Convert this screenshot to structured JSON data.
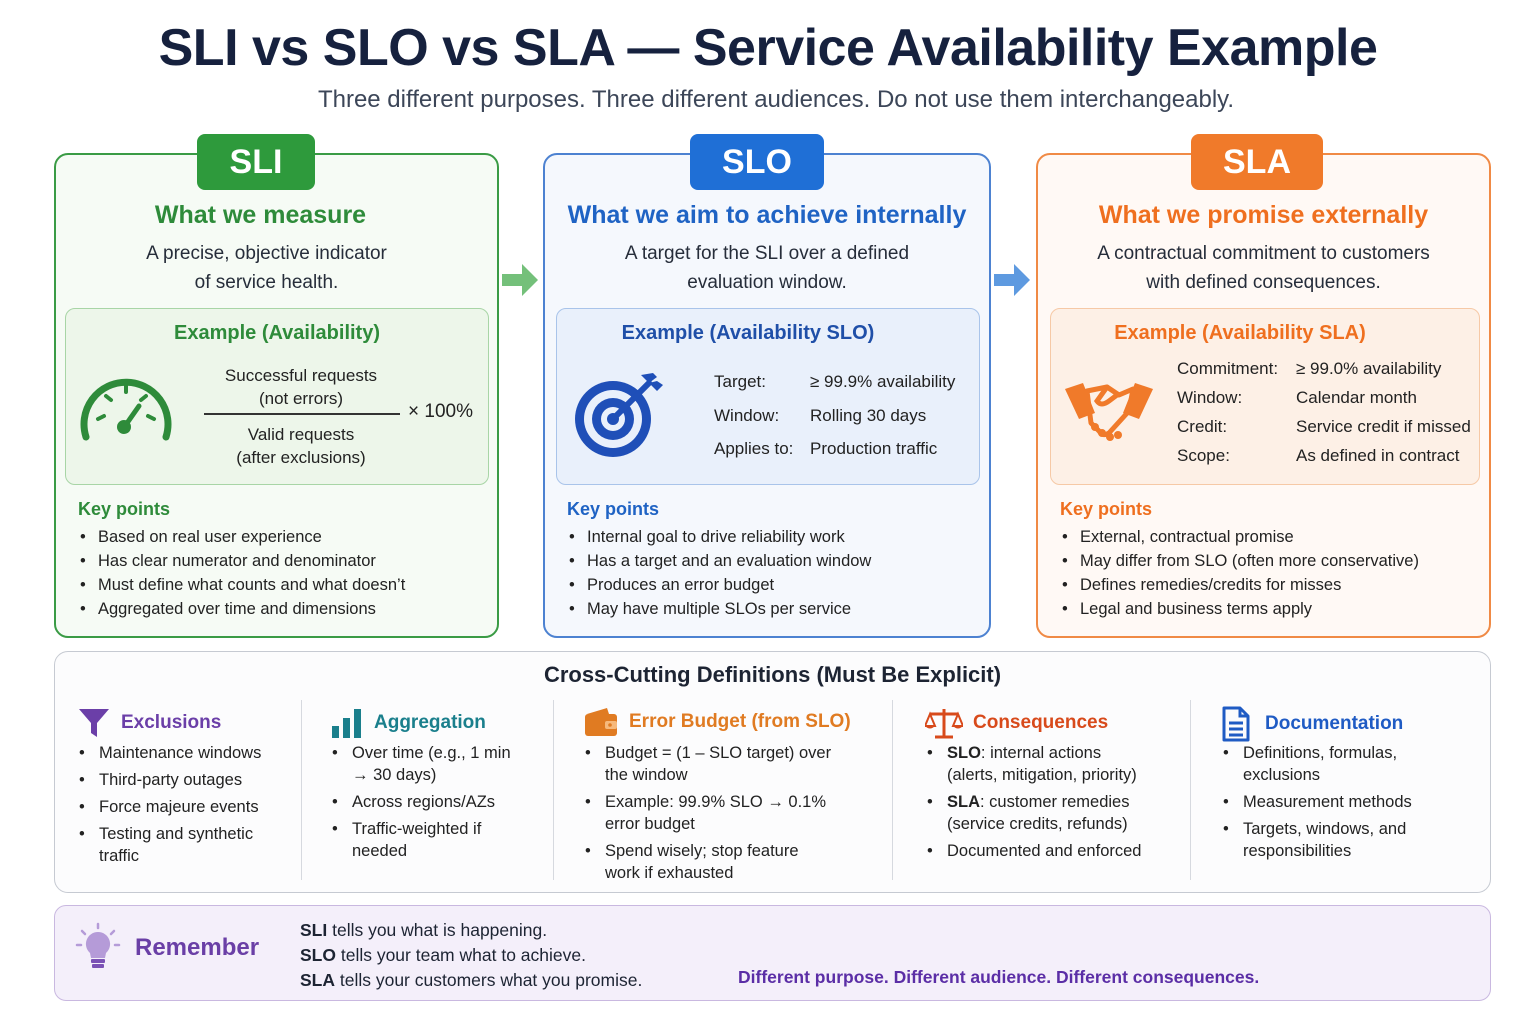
{
  "title": "SLI vs SLO vs SLA — Service Availability Example",
  "subtitle": "Three different purposes. Three different audiences. Do not use them interchangeably.",
  "colors": {
    "sli": "#2e9a3c",
    "slo": "#1f6fd6",
    "sla": "#f07a2a",
    "remember": "#6a3fa6"
  },
  "cards": {
    "sli": {
      "badge": "SLI",
      "heading": "What we measure",
      "desc1": "A precise, objective indicator",
      "desc2": "of service health.",
      "example_title": "Example (Availability)",
      "icon": "gauge-icon",
      "numerator1": "Successful requests",
      "numerator2": "(not errors)",
      "denominator1": "Valid requests",
      "denominator2": "(after exclusions)",
      "multiplier": "× 100%",
      "key_title": "Key points",
      "points": [
        "Based on real user experience",
        "Has clear numerator and denominator",
        "Must define what counts and what doesn’t",
        "Aggregated over time and dimensions"
      ]
    },
    "slo": {
      "badge": "SLO",
      "heading": "What we aim to achieve internally",
      "desc1": "A target for the SLI over a defined",
      "desc2": "evaluation window.",
      "example_title": "Example (Availability SLO)",
      "icon": "target-icon",
      "rows": [
        {
          "k": "Target:",
          "v": "≥ 99.9% availability"
        },
        {
          "k": "Window:",
          "v": "Rolling 30 days"
        },
        {
          "k": "Applies to:",
          "v": "Production traffic"
        }
      ],
      "key_title": "Key points",
      "points": [
        "Internal goal to drive reliability work",
        "Has a target and an evaluation window",
        "Produces an error budget",
        "May have multiple SLOs per service"
      ]
    },
    "sla": {
      "badge": "SLA",
      "heading": "What we promise externally",
      "desc1": "A contractual commitment to customers",
      "desc2": "with defined consequences.",
      "example_title": "Example (Availability SLA)",
      "icon": "handshake-icon",
      "rows": [
        {
          "k": "Commitment:",
          "v": "≥ 99.0% availability"
        },
        {
          "k": "Window:",
          "v": "Calendar month"
        },
        {
          "k": "Credit:",
          "v": "Service credit if missed"
        },
        {
          "k": "Scope:",
          "v": "As defined in contract"
        }
      ],
      "key_title": "Key points",
      "points": [
        "External, contractual promise",
        "May differ from SLO (often more conservative)",
        "Defines remedies/credits for misses",
        "Legal and business terms apply"
      ]
    }
  },
  "cross": {
    "title": "Cross-Cutting Definitions (Must Be Explicit)",
    "columns": [
      {
        "label": "Exclusions",
        "icon": "funnel-icon",
        "color": "#6b3fa8",
        "items": [
          "Maintenance windows",
          "Third-party outages",
          "Force majeure events",
          "Testing and synthetic traffic"
        ]
      },
      {
        "label": "Aggregation",
        "icon": "bar-chart-icon",
        "color": "#1a7f8c",
        "items": [
          "Over time (e.g., 1 min → 30 days)",
          "Across regions/AZs",
          "Traffic-weighted if needed"
        ]
      },
      {
        "label": "Error Budget (from SLO)",
        "icon": "wallet-icon",
        "color": "#e07b22",
        "items": [
          "Budget = (1 – SLO target) over the window",
          "Example: 99.9% SLO → 0.1% error budget",
          "Spend wisely; stop feature work if exhausted"
        ]
      },
      {
        "label": "Consequences",
        "icon": "scales-icon",
        "color": "#d84a1b",
        "items_rich": [
          {
            "bold": "SLO",
            "rest": ": internal actions (alerts, mitigation, priority)"
          },
          {
            "bold": "SLA",
            "rest": ": customer remedies (service credits, refunds)"
          },
          {
            "bold": "",
            "rest": "Documented and enforced"
          }
        ]
      },
      {
        "label": "Documentation",
        "icon": "document-icon",
        "color": "#1f5bc4",
        "items": [
          "Definitions, formulas, exclusions",
          "Measurement methods",
          "Targets, windows, and responsibilities"
        ]
      }
    ]
  },
  "remember": {
    "label": "Remember",
    "icon": "lightbulb-icon",
    "lines": [
      {
        "bold": "SLI",
        "rest": " tells you what is happening."
      },
      {
        "bold": "SLO",
        "rest": " tells your team what to achieve."
      },
      {
        "bold": "SLA",
        "rest": " tells your customers what you promise."
      }
    ],
    "tagline": "Different purpose. Different audience. Different consequences."
  }
}
